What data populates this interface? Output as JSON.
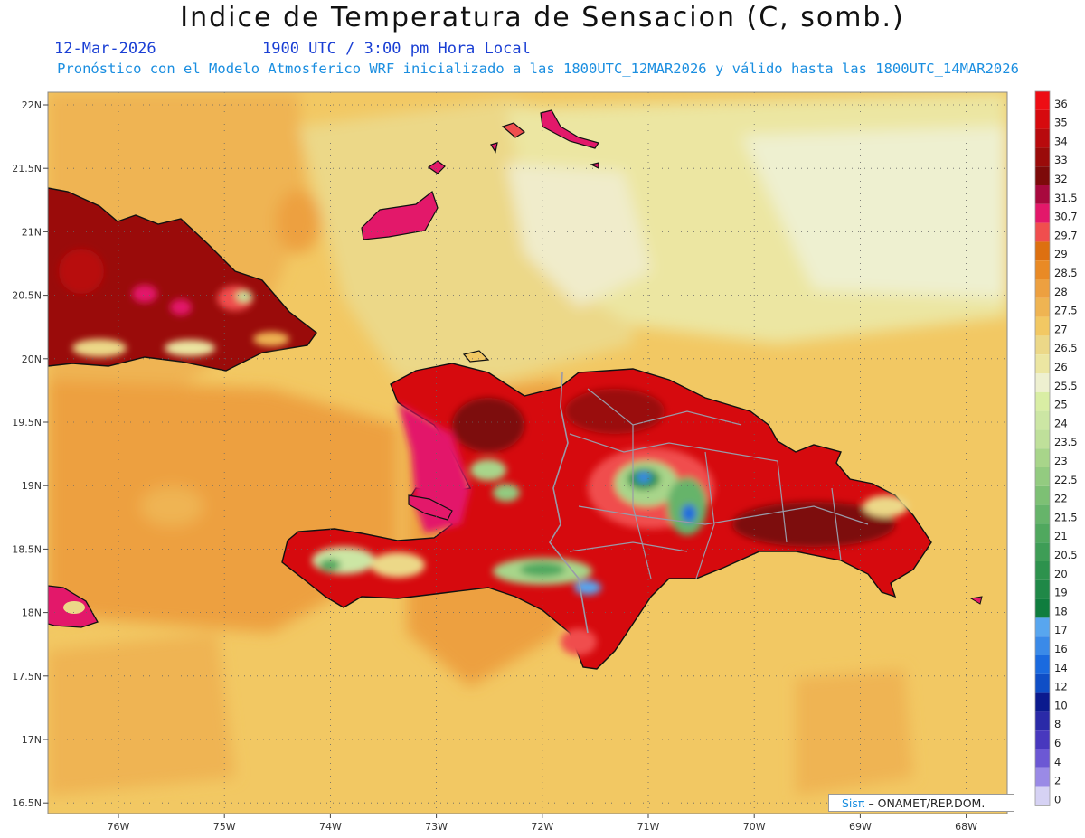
{
  "title": "Indice de Temperatura de Sensacion (C, somb.)",
  "date": "12-Mar-2026",
  "hour_line": "1900 UTC / 3:00 pm Hora Local",
  "model_line": "Pronóstico con el Modelo Atmosferico WRF inicializado a las 1800UTC_12MAR2026 y válido hasta las  1800UTC_14MAR2026",
  "credit": {
    "sis": "Sisπ",
    "text": "– ONAMET/REP.DOM."
  },
  "lat_labels": [
    "22N",
    "21.5N",
    "21N",
    "20.5N",
    "20N",
    "19.5N",
    "19N",
    "18.5N",
    "18N",
    "17.5N",
    "17N",
    "16.5N"
  ],
  "lon_labels": [
    "76W",
    "75W",
    "74W",
    "73W",
    "72W",
    "71W",
    "70W",
    "69W",
    "68W"
  ],
  "legend": [
    {
      "label": "36",
      "color": "#ee0d14"
    },
    {
      "label": "35",
      "color": "#d60a0e"
    },
    {
      "label": "34",
      "color": "#b80a0d"
    },
    {
      "label": "33",
      "color": "#9a0b0a"
    },
    {
      "label": "32",
      "color": "#7d0a0a"
    },
    {
      "label": "31.5",
      "color": "#a8093e"
    },
    {
      "label": "30.7",
      "color": "#e3186a"
    },
    {
      "label": "29.7",
      "color": "#f04e4e"
    },
    {
      "label": "29",
      "color": "#dd7010"
    },
    {
      "label": "28.5",
      "color": "#e98a25"
    },
    {
      "label": "28",
      "color": "#eda040"
    },
    {
      "label": "27.5",
      "color": "#efb452"
    },
    {
      "label": "27",
      "color": "#f2c863"
    },
    {
      "label": "26.5",
      "color": "#ecd888"
    },
    {
      "label": "26",
      "color": "#ece6a2"
    },
    {
      "label": "25.5",
      "color": "#eef0d0"
    },
    {
      "label": "25",
      "color": "#d9eea4"
    },
    {
      "label": "24",
      "color": "#cce6a4"
    },
    {
      "label": "23.5",
      "color": "#bfe09a"
    },
    {
      "label": "23",
      "color": "#a8d58a"
    },
    {
      "label": "22.5",
      "color": "#93cb80"
    },
    {
      "label": "22",
      "color": "#7dc074"
    },
    {
      "label": "21.5",
      "color": "#66b46a"
    },
    {
      "label": "21",
      "color": "#50a85e"
    },
    {
      "label": "20.5",
      "color": "#3e9d56"
    },
    {
      "label": "20",
      "color": "#2d924d"
    },
    {
      "label": "19",
      "color": "#1f8847"
    },
    {
      "label": "18",
      "color": "#0f7d3e"
    },
    {
      "label": "17",
      "color": "#58a6ef"
    },
    {
      "label": "16",
      "color": "#3a8ae8"
    },
    {
      "label": "14",
      "color": "#1a6adf"
    },
    {
      "label": "12",
      "color": "#0f4ec6"
    },
    {
      "label": "10",
      "color": "#0b1a8e"
    },
    {
      "label": "8",
      "color": "#2a2aa8"
    },
    {
      "label": "6",
      "color": "#4838be"
    },
    {
      "label": "4",
      "color": "#6c58d4"
    },
    {
      "label": "2",
      "color": "#9a8ae6"
    },
    {
      "label": "0",
      "color": "#d6d2f4"
    }
  ]
}
